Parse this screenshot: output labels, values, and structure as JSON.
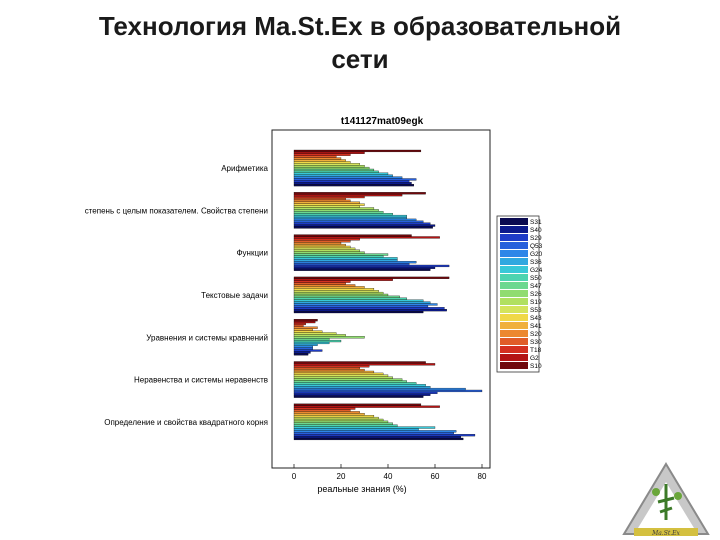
{
  "slide": {
    "title_line1": "Технология Ma.St.Ex в образовательной",
    "title_line2": "сети",
    "logo_text": "Ma.St.Ex"
  },
  "chart_data": {
    "type": "bar",
    "orientation": "horizontal",
    "title": "t141127mat09egk",
    "xlabel": "реальные знания (%)",
    "ylabel": "",
    "xlim": [
      0,
      80
    ],
    "xticks": [
      0,
      20,
      40,
      60,
      80
    ],
    "grid": false,
    "legend_position": "right",
    "categories": [
      "Арифметика",
      "степень с целым показателем. Свойства степени",
      "Функции",
      "Текстовые задачи",
      "Уравнения и системы кравнений",
      "Неравенства и системы неравенств",
      "Определение и свойства квадратного корня"
    ],
    "series": [
      {
        "name": "S31",
        "color": "#0a0a50",
        "values": [
          51,
          59,
          58,
          55,
          6,
          55,
          72
        ]
      },
      {
        "name": "S40",
        "color": "#0c1a8c",
        "values": [
          50,
          60,
          60,
          65,
          7,
          58,
          71
        ]
      },
      {
        "name": "S29",
        "color": "#1e3cc8",
        "values": [
          49,
          58,
          66,
          64,
          12,
          61,
          77
        ]
      },
      {
        "name": "Q53",
        "color": "#2860dc",
        "values": [
          52,
          55,
          49,
          57,
          8,
          80,
          68
        ]
      },
      {
        "name": "G20",
        "color": "#2e86e8",
        "values": [
          46,
          52,
          52,
          61,
          8,
          73,
          69
        ]
      },
      {
        "name": "S36",
        "color": "#30a8e0",
        "values": [
          42,
          48,
          44,
          58,
          10,
          58,
          53
        ]
      },
      {
        "name": "G24",
        "color": "#38c8d8",
        "values": [
          40,
          48,
          44,
          55,
          15,
          56,
          60
        ]
      },
      {
        "name": "S50",
        "color": "#4cd4b0",
        "values": [
          36,
          42,
          38,
          48,
          20,
          52,
          44
        ]
      },
      {
        "name": "S47",
        "color": "#6cd890",
        "values": [
          34,
          38,
          40,
          45,
          15,
          48,
          42
        ]
      },
      {
        "name": "S26",
        "color": "#90dc70",
        "values": [
          32,
          36,
          30,
          40,
          30,
          46,
          40
        ]
      },
      {
        "name": "S19",
        "color": "#b0e060",
        "values": [
          30,
          34,
          28,
          38,
          22,
          42,
          38
        ]
      },
      {
        "name": "S53",
        "color": "#d4e45c",
        "values": [
          28,
          28,
          26,
          36,
          18,
          40,
          36
        ]
      },
      {
        "name": "S43",
        "color": "#f0d848",
        "values": [
          24,
          30,
          24,
          34,
          12,
          38,
          34
        ]
      },
      {
        "name": "S41",
        "color": "#f0b03c",
        "values": [
          22,
          28,
          22,
          30,
          8,
          34,
          30
        ]
      },
      {
        "name": "S20",
        "color": "#ec8830",
        "values": [
          20,
          24,
          20,
          26,
          10,
          30,
          28
        ]
      },
      {
        "name": "S30",
        "color": "#e05c28",
        "values": [
          18,
          22,
          24,
          22,
          4,
          28,
          24
        ]
      },
      {
        "name": "T18",
        "color": "#d43020",
        "values": [
          24,
          30,
          28,
          24,
          5,
          32,
          26
        ]
      },
      {
        "name": "G2",
        "color": "#b41414",
        "values": [
          30,
          46,
          62,
          42,
          9,
          60,
          62
        ]
      },
      {
        "name": "S10",
        "color": "#70080c",
        "values": [
          54,
          56,
          50,
          66,
          10,
          56,
          54
        ]
      }
    ]
  }
}
